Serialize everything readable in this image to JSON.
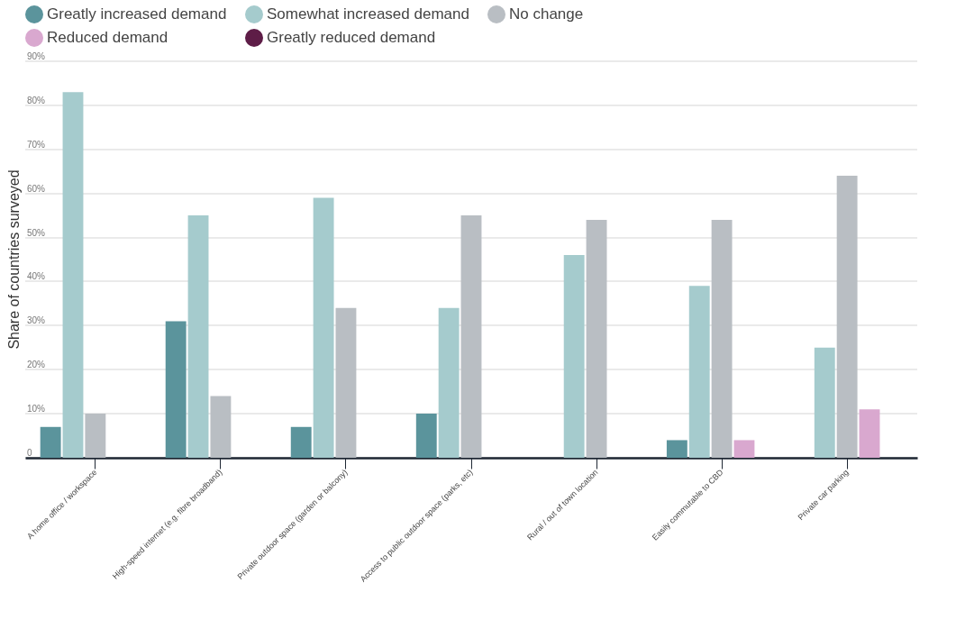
{
  "chart_data": {
    "type": "bar",
    "ylabel": "Share of countries surveyed",
    "categories": [
      "A home office / workspace",
      "High-speed internet (e.g. fibre broadband)",
      "Private outdoor space (garden or balcony)",
      "Access to public outdoor space (parks, etc)",
      "Rural / out of town location",
      "Easily commutable to CBD",
      "Private car parking"
    ],
    "series": [
      {
        "name": "Greatly increased demand",
        "color": "#5b949c",
        "values": [
          7,
          31,
          7,
          10,
          0,
          4,
          0
        ]
      },
      {
        "name": "Somewhat increased demand",
        "color": "#a5cbcd",
        "values": [
          83,
          55,
          59,
          34,
          46,
          39,
          25
        ]
      },
      {
        "name": "No change",
        "color": "#b9bec3",
        "values": [
          10,
          14,
          34,
          55,
          54,
          54,
          64
        ]
      },
      {
        "name": "Reduced demand",
        "color": "#d9a8cf",
        "values": [
          0,
          0,
          0,
          0,
          0,
          4,
          11
        ]
      },
      {
        "name": "Greatly reduced demand",
        "color": "#5e1d47",
        "values": [
          0,
          0,
          0,
          0,
          0,
          0,
          0
        ]
      }
    ],
    "ylim": [
      0,
      90
    ],
    "yticks": [
      {
        "value": 0,
        "label": "0"
      },
      {
        "value": 10,
        "label": "10%"
      },
      {
        "value": 20,
        "label": "20%"
      },
      {
        "value": 30,
        "label": "30%"
      },
      {
        "value": 40,
        "label": "40%"
      },
      {
        "value": 50,
        "label": "50%"
      },
      {
        "value": 60,
        "label": "60%"
      },
      {
        "value": 70,
        "label": "70%"
      },
      {
        "value": 80,
        "label": "80%"
      },
      {
        "value": 90,
        "label": "90%"
      }
    ],
    "grid": "y",
    "legend": "top"
  }
}
